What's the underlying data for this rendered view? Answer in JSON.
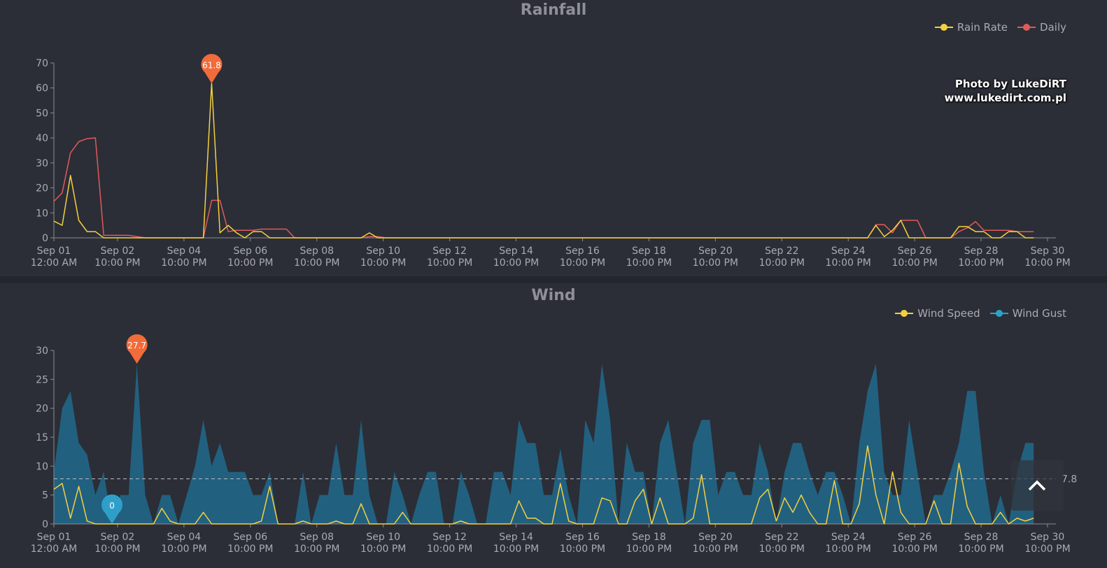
{
  "chart_data": [
    {
      "type": "line",
      "title": "Rainfall",
      "x_start": "Sep 01 12:00 AM",
      "x_step_hours": 6,
      "xtick_labels": [
        [
          "Sep 01",
          "12:00 AM"
        ],
        [
          "Sep 02",
          "10:00 PM"
        ],
        [
          "Sep 04",
          "10:00 PM"
        ],
        [
          "Sep 06",
          "10:00 PM"
        ],
        [
          "Sep 08",
          "10:00 PM"
        ],
        [
          "Sep 10",
          "10:00 PM"
        ],
        [
          "Sep 12",
          "10:00 PM"
        ],
        [
          "Sep 14",
          "10:00 PM"
        ],
        [
          "Sep 16",
          "10:00 PM"
        ],
        [
          "Sep 18",
          "10:00 PM"
        ],
        [
          "Sep 20",
          "10:00 PM"
        ],
        [
          "Sep 22",
          "10:00 PM"
        ],
        [
          "Sep 24",
          "10:00 PM"
        ],
        [
          "Sep 26",
          "10:00 PM"
        ],
        [
          "Sep 28",
          "10:00 PM"
        ],
        [
          "Sep 30",
          "10:00 PM"
        ]
      ],
      "xtick_hours": [
        0,
        46,
        94,
        142,
        190,
        238,
        286,
        334,
        382,
        430,
        478,
        526,
        574,
        622,
        670,
        718
      ],
      "x_range_hours": [
        0,
        718
      ],
      "ylim": [
        0,
        70
      ],
      "yticks": [
        0,
        10,
        20,
        30,
        40,
        50,
        60,
        70
      ],
      "legend_position": "top-right",
      "series": [
        {
          "name": "Rain Rate",
          "color": "#f4d03f",
          "values": [
            6.7,
            5,
            25,
            7,
            2.5,
            2.5,
            0,
            0,
            0,
            0,
            0,
            0,
            0,
            0,
            0,
            0,
            0,
            0,
            0,
            61.8,
            2,
            5,
            2,
            0,
            2.5,
            2.5,
            0,
            0,
            0,
            0,
            0,
            0,
            0,
            0,
            0,
            0,
            0,
            0,
            2,
            0,
            0,
            0,
            0,
            0,
            0,
            0,
            0,
            0,
            0,
            0,
            0,
            0,
            0,
            0,
            0,
            0,
            0,
            0,
            0,
            0,
            0,
            0,
            0,
            0,
            0,
            0,
            0,
            0,
            0,
            0,
            0,
            0,
            0,
            0,
            0,
            0,
            0,
            0,
            0,
            0,
            0,
            0,
            0,
            0,
            0,
            0,
            0,
            0,
            0,
            0,
            0,
            0,
            0,
            0,
            0,
            0,
            0,
            0,
            0,
            5,
            0.5,
            3,
            7,
            0,
            0,
            0,
            0,
            0,
            0,
            4.5,
            4.5,
            2.5,
            2.5,
            0,
            0,
            2.5,
            2.5,
            0,
            0
          ]
        },
        {
          "name": "Daily",
          "color": "#e05a5a",
          "values": [
            14.6,
            18,
            34,
            38.5,
            39.7,
            40,
            1,
            1,
            1,
            1,
            0.5,
            0,
            0,
            0,
            0,
            0,
            0,
            0,
            0,
            15,
            15,
            2.5,
            3,
            3,
            3,
            3.5,
            3.5,
            3.5,
            3.5,
            0,
            0,
            0,
            0,
            0,
            0,
            0,
            0,
            0,
            0.5,
            0.5,
            0,
            0,
            0,
            0,
            0,
            0,
            0,
            0,
            0,
            0,
            0,
            0,
            0,
            0,
            0,
            0,
            0,
            0,
            0,
            0,
            0,
            0,
            0,
            0,
            0,
            0,
            0,
            0,
            0,
            0,
            0,
            0,
            0,
            0,
            0,
            0,
            0,
            0,
            0,
            0,
            0,
            0,
            0,
            0,
            0,
            0,
            0,
            0,
            0,
            0,
            0,
            0,
            0,
            0,
            0,
            0,
            0,
            0,
            0,
            5.3,
            5.3,
            2,
            7,
            7,
            7,
            0,
            0,
            0,
            0,
            2.5,
            4,
            6.5,
            3,
            3,
            3,
            3,
            2.5,
            2.5,
            2.5
          ]
        }
      ],
      "markers": [
        {
          "series": "Rain Rate",
          "index": 19,
          "label": "61.8",
          "color": "#f26b3a"
        }
      ]
    },
    {
      "type": "area",
      "title": "Wind",
      "x_start": "Sep 01 12:00 AM",
      "x_step_hours": 6,
      "xtick_labels": [
        [
          "Sep 01",
          "12:00 AM"
        ],
        [
          "Sep 02",
          "10:00 PM"
        ],
        [
          "Sep 04",
          "10:00 PM"
        ],
        [
          "Sep 06",
          "10:00 PM"
        ],
        [
          "Sep 08",
          "10:00 PM"
        ],
        [
          "Sep 10",
          "10:00 PM"
        ],
        [
          "Sep 12",
          "10:00 PM"
        ],
        [
          "Sep 14",
          "10:00 PM"
        ],
        [
          "Sep 16",
          "10:00 PM"
        ],
        [
          "Sep 18",
          "10:00 PM"
        ],
        [
          "Sep 20",
          "10:00 PM"
        ],
        [
          "Sep 22",
          "10:00 PM"
        ],
        [
          "Sep 24",
          "10:00 PM"
        ],
        [
          "Sep 26",
          "10:00 PM"
        ],
        [
          "Sep 28",
          "10:00 PM"
        ],
        [
          "Sep 30",
          "10:00 PM"
        ]
      ],
      "xtick_hours": [
        0,
        46,
        94,
        142,
        190,
        238,
        286,
        334,
        382,
        430,
        478,
        526,
        574,
        622,
        670,
        718
      ],
      "x_range_hours": [
        0,
        718
      ],
      "ylim": [
        0,
        30
      ],
      "yticks": [
        0,
        5,
        10,
        15,
        20,
        25,
        30
      ],
      "legend_position": "top-right",
      "mark_line": {
        "value": 7.8,
        "label": "7.8"
      },
      "series": [
        {
          "name": "Wind Speed",
          "color": "#f4d03f",
          "values": [
            6,
            7,
            1,
            6.5,
            0.5,
            0,
            0,
            0,
            0,
            0,
            0,
            0,
            0,
            2.7,
            0.5,
            0,
            0,
            0,
            2,
            0,
            0,
            0,
            0,
            0,
            0,
            0.5,
            6.5,
            0,
            0,
            0,
            0.5,
            0,
            0,
            0,
            0.5,
            0,
            0,
            3.5,
            0,
            0,
            0,
            0,
            2,
            0,
            0,
            0,
            0,
            0,
            0,
            0.5,
            0,
            0,
            0,
            0,
            0,
            0,
            4,
            1,
            1,
            0,
            0,
            7,
            0.5,
            0,
            0,
            0,
            4.5,
            4,
            0,
            0,
            4,
            6,
            0,
            4.5,
            0,
            0,
            0,
            1,
            8.5,
            0,
            0,
            0,
            0,
            0,
            0,
            4.5,
            6,
            0.5,
            4.5,
            2,
            5,
            2,
            0,
            0,
            7.5,
            0,
            0,
            3.5,
            13.5,
            5,
            0,
            9,
            2,
            0,
            0,
            0,
            4,
            0,
            0,
            10.5,
            3,
            0,
            0,
            0,
            2,
            0,
            1,
            0.5,
            1
          ]
        },
        {
          "name": "Wind Gust",
          "color": "#2aa3c9",
          "fill": "#22607f",
          "values": [
            9,
            20,
            23,
            14,
            12,
            5,
            9,
            0,
            5,
            5,
            27.7,
            5,
            0,
            5,
            5,
            0,
            5,
            10,
            18,
            10,
            14,
            9,
            9,
            9,
            5,
            5,
            9,
            0,
            0,
            0,
            9,
            0,
            5,
            5,
            14,
            5,
            5,
            18,
            5,
            0,
            0,
            9,
            5,
            0,
            5,
            9,
            9,
            0,
            0,
            9,
            5,
            0,
            0,
            9,
            9,
            5,
            18,
            14,
            14,
            5,
            5,
            13,
            5,
            0,
            18,
            14,
            27.7,
            18,
            0,
            14,
            9,
            9,
            0,
            14,
            18,
            9,
            0,
            14,
            18,
            18,
            5,
            9,
            9,
            5,
            5,
            14,
            9,
            0,
            9,
            14,
            14,
            9,
            5,
            9,
            9,
            5,
            0,
            14,
            23,
            27.7,
            9,
            5,
            5,
            18,
            9,
            0,
            5,
            5,
            9,
            14,
            23,
            23,
            9,
            0,
            5,
            0,
            9,
            14,
            14
          ]
        }
      ],
      "markers": [
        {
          "series": "Wind Gust",
          "index": 10,
          "label": "27.7",
          "color": "#f26b3a"
        },
        {
          "series": "Wind Gust",
          "index": 7,
          "label": "0",
          "color": "#2e9fc9"
        }
      ]
    }
  ],
  "watermark": {
    "line1": "Photo by LukeDiRT",
    "line2": "www.lukedirt.com.pl"
  }
}
